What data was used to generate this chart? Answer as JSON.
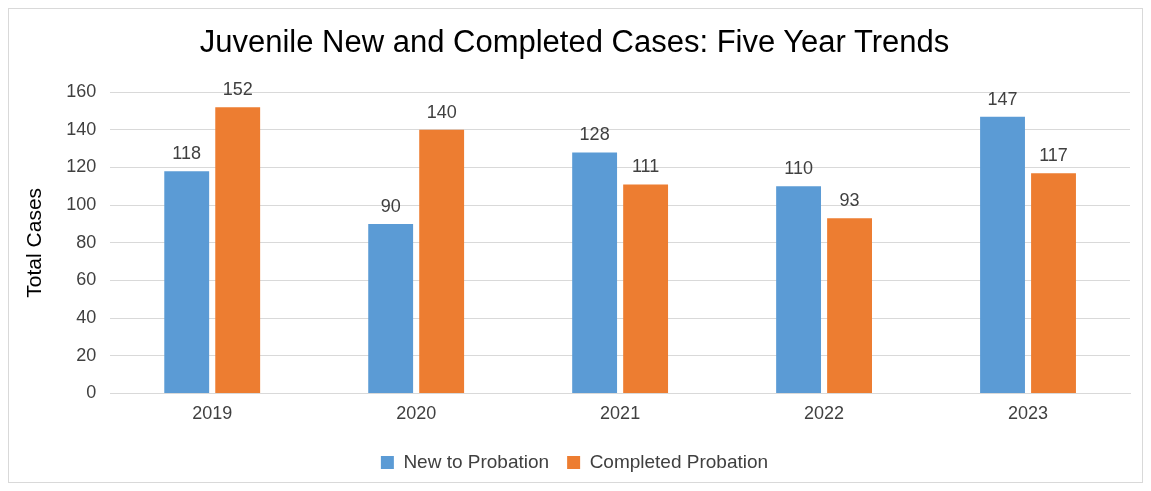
{
  "chart_data": {
    "type": "bar",
    "title": "Juvenile New and Completed Cases: Five Year Trends",
    "ylabel": "Total Cases",
    "categories": [
      "2019",
      "2020",
      "2021",
      "2022",
      "2023"
    ],
    "series": [
      {
        "name": "New to Probation",
        "color": "#5b9bd5",
        "values": [
          118,
          90,
          128,
          110,
          147
        ]
      },
      {
        "name": "Completed Probation",
        "color": "#ed7d31",
        "values": [
          152,
          140,
          111,
          93,
          117
        ]
      }
    ],
    "ylim": [
      0,
      160
    ],
    "yticks": [
      0,
      20,
      40,
      60,
      80,
      100,
      120,
      140,
      160
    ],
    "grid": "y",
    "legend": "bottom",
    "data_labels": true
  }
}
